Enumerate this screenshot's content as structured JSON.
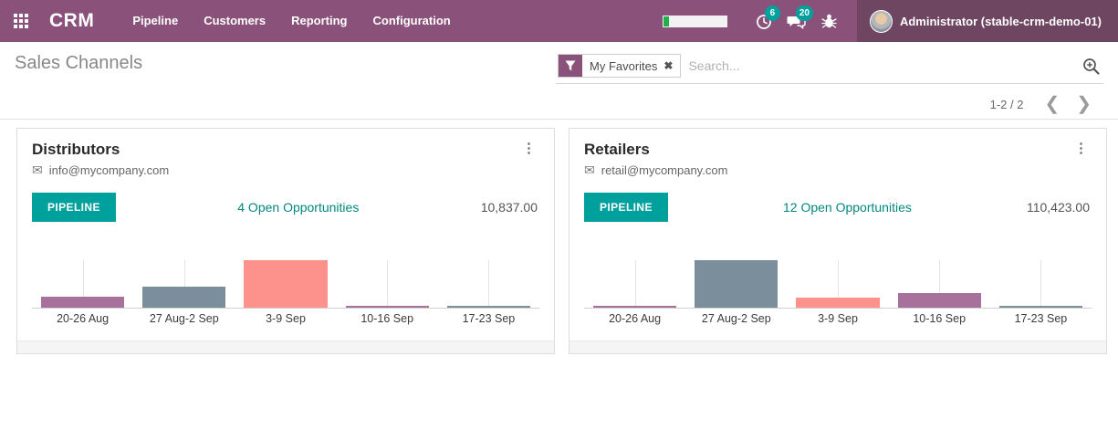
{
  "colors": {
    "navbar_bg": "#8A527A",
    "user_section_bg": "#6F4662",
    "accent_teal": "#00A09D",
    "progress_green": "#21B14B",
    "bar_mauve": "#A8719C",
    "bar_slate": "#7B8E9B",
    "bar_salmon": "#FD918C"
  },
  "navbar": {
    "app_name": "CRM",
    "menu_items": [
      {
        "label": "Pipeline"
      },
      {
        "label": "Customers"
      },
      {
        "label": "Reporting"
      },
      {
        "label": "Configuration"
      }
    ],
    "systray": {
      "activities_badge": "6",
      "messages_badge": "20"
    },
    "user_name": "Administrator (stable-crm-demo-01)"
  },
  "control_panel": {
    "title": "Sales Channels",
    "search": {
      "facet_label": "My Favorites",
      "facet_close": "✖",
      "placeholder": "Search..."
    },
    "pager": {
      "range": "1-2 / 2",
      "prev_icon": "❮",
      "next_icon": "❯"
    }
  },
  "icons": {
    "envelope": "✉",
    "kebab": "⋮"
  },
  "cards": [
    {
      "title": "Distributors",
      "email": "info@mycompany.com",
      "button_label": "PIPELINE",
      "opportunities": "4 Open Opportunities",
      "amount": "10,837.00"
    },
    {
      "title": "Retailers",
      "email": "retail@mycompany.com",
      "button_label": "PIPELINE",
      "opportunities": "12 Open Opportunities",
      "amount": "110,423.00"
    }
  ],
  "chart_data": [
    {
      "type": "bar",
      "title": "Distributors — weekly pipeline activity",
      "categories": [
        "20-26 Aug",
        "27 Aug-2 Sep",
        "3-9 Sep",
        "10-16 Sep",
        "17-23 Sep"
      ],
      "values": [
        12,
        23,
        52,
        2,
        2
      ],
      "value_note": "relative bar heights in px (no y-axis shown in UI)",
      "colors": [
        "#A8719C",
        "#7B8E9B",
        "#FD918C",
        "#A8719C",
        "#7B8E9B"
      ],
      "xlabel": "",
      "ylabel": "",
      "ylim": [
        0,
        53
      ],
      "grid": "vertical tick lines only",
      "legend": "none"
    },
    {
      "type": "bar",
      "title": "Retailers — weekly pipeline activity",
      "categories": [
        "20-26 Aug",
        "27 Aug-2 Sep",
        "3-9 Sep",
        "10-16 Sep",
        "17-23 Sep"
      ],
      "values": [
        2,
        52,
        11,
        16,
        2
      ],
      "value_note": "relative bar heights in px (no y-axis shown in UI)",
      "colors": [
        "#A8719C",
        "#7B8E9B",
        "#FD918C",
        "#A8719C",
        "#7B8E9B"
      ],
      "xlabel": "",
      "ylabel": "",
      "ylim": [
        0,
        53
      ],
      "grid": "vertical tick lines only",
      "legend": "none"
    }
  ]
}
